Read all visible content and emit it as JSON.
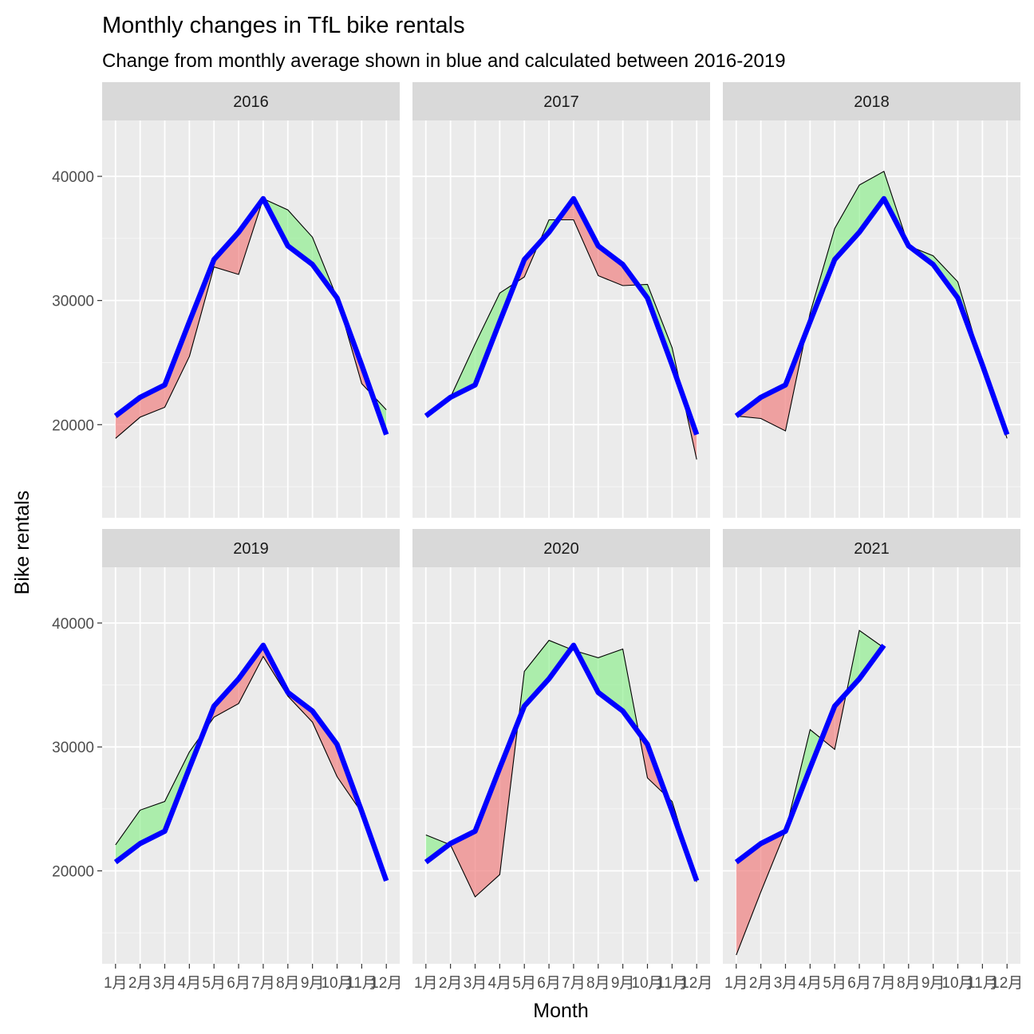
{
  "colors": {
    "panel_bg": "#EBEBEB",
    "strip_bg": "#D9D9D9",
    "grid_major": "#FFFFFF",
    "above_fill": "#90EE90",
    "below_fill": "#F08080",
    "expected_line": "#0000FF",
    "actual_line": "#000000"
  },
  "chart_data": {
    "type": "area",
    "title": "Monthly changes in TfL bike rentals",
    "subtitle": "Change from monthly average shown in blue and calculated between 2016-2019",
    "xlabel": "Month",
    "ylabel": "Bike rentals",
    "ylim": [
      12500,
      44500
    ],
    "yticks": [
      20000,
      30000,
      40000
    ],
    "y_tick_labels": [
      "20000",
      "30000",
      "40000"
    ],
    "categories": [
      "1月",
      "2月",
      "3月",
      "4月",
      "5月",
      "6月",
      "7月",
      "8月",
      "9月",
      "10月",
      "11月",
      "12月"
    ],
    "grid": true,
    "layout": "facet_wrap 2 rows x 3 cols",
    "expected": [
      20700,
      22200,
      23200,
      28300,
      33300,
      35500,
      38200,
      34400,
      32900,
      30200,
      24800,
      19200
    ],
    "panels": [
      {
        "label": "2016",
        "actual": [
          18900,
          20600,
          21400,
          25500,
          32700,
          32100,
          38200,
          37300,
          35100,
          30200,
          23300,
          21200
        ]
      },
      {
        "label": "2017",
        "actual": [
          20700,
          22200,
          26500,
          30600,
          31900,
          36500,
          36500,
          32000,
          31200,
          31300,
          26200,
          17200
        ]
      },
      {
        "label": "2018",
        "actual": [
          20700,
          20500,
          19500,
          29000,
          35800,
          39300,
          40400,
          34400,
          33600,
          31500,
          24800,
          18900
        ]
      },
      {
        "label": "2019",
        "actual": [
          22100,
          24900,
          25600,
          29600,
          32400,
          33500,
          37300,
          34100,
          32000,
          27600,
          24700,
          19200
        ]
      },
      {
        "label": "2020",
        "actual": [
          22900,
          22100,
          17900,
          19700,
          36100,
          38600,
          37800,
          37200,
          37900,
          27500,
          25600,
          19100
        ]
      },
      {
        "label": "2021",
        "actual": [
          13200,
          18300,
          23200,
          31400,
          29800,
          39400,
          38000
        ]
      }
    ]
  }
}
